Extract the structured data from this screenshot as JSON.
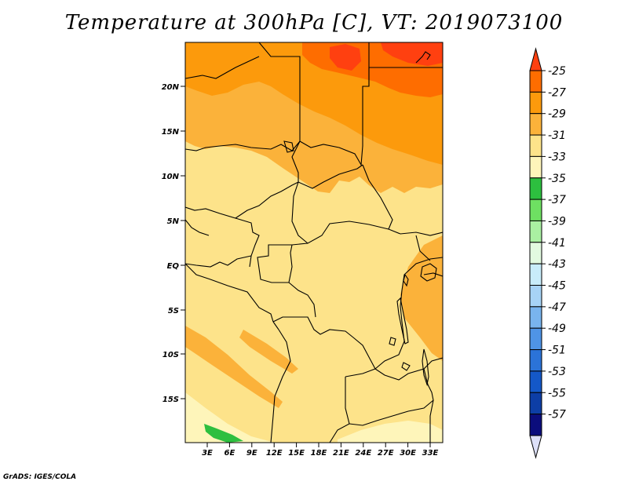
{
  "title": "Temperature at 300hPa [C], VT: 2019073100",
  "credit": "GrADS: IGES/COLA",
  "map": {
    "lat_ticks": [
      "20N",
      "15N",
      "10N",
      "5N",
      "EQ",
      "5S",
      "10S",
      "15S"
    ],
    "lon_ticks": [
      "3E",
      "6E",
      "9E",
      "12E",
      "15E",
      "18E",
      "21E",
      "24E",
      "27E",
      "30E",
      "33E"
    ]
  },
  "legend": {
    "levels": [
      "-25",
      "-27",
      "-29",
      "-31",
      "-33",
      "-35",
      "-37",
      "-39",
      "-41",
      "-43",
      "-45",
      "-47",
      "-49",
      "-51",
      "-53",
      "-55",
      "-57"
    ],
    "colors": [
      "#fe6d00",
      "#fc9a0c",
      "#fbb23a",
      "#fde38a",
      "#fef5ba",
      "#2dbf3f",
      "#6ee062",
      "#aaf0a2",
      "#e2fae0",
      "#c8ecfa",
      "#a7d3f6",
      "#79b4ee",
      "#4f94e6",
      "#2b73d8",
      "#1458c8",
      "#0d3ea6",
      "#0b0d7c"
    ],
    "top_color": "#ff4010",
    "bottom_color": "#dde0f8"
  }
}
